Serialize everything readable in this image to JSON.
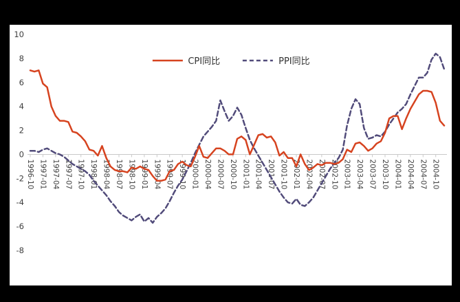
{
  "window": {
    "background": "#000000",
    "panel_background": "#ffffff"
  },
  "chart_data": {
    "type": "line",
    "title": "",
    "xlabel": "",
    "ylabel": "",
    "grid": false,
    "legend_position": "top-center",
    "axis_color": "#c9c9c9",
    "tick_label_color": "#3f3f3f",
    "ylim": [
      -8,
      10
    ],
    "yticks": [
      10,
      8,
      6,
      4,
      2,
      0,
      -2,
      -4,
      -6,
      -8
    ],
    "x_label_every": 3,
    "x": [
      "1996-10",
      "1996-11",
      "1996-12",
      "1997-01",
      "1997-02",
      "1997-03",
      "1997-04",
      "1997-05",
      "1997-06",
      "1997-07",
      "1997-08",
      "1997-09",
      "1997-10",
      "1997-11",
      "1997-12",
      "1998-01",
      "1998-02",
      "1998-03",
      "1998-04",
      "1998-05",
      "1998-06",
      "1998-07",
      "1998-08",
      "1998-09",
      "1998-10",
      "1998-11",
      "1998-12",
      "1999-01",
      "1999-02",
      "1999-03",
      "1999-04",
      "1999-05",
      "1999-06",
      "1999-07",
      "1999-08",
      "1999-09",
      "1999-10",
      "1999-11",
      "1999-12",
      "2000-01",
      "2000-02",
      "2000-03",
      "2000-04",
      "2000-05",
      "2000-06",
      "2000-07",
      "2000-08",
      "2000-09",
      "2000-10",
      "2000-11",
      "2000-12",
      "2001-01",
      "2001-02",
      "2001-03",
      "2001-04",
      "2001-05",
      "2001-06",
      "2001-07",
      "2001-08",
      "2001-09",
      "2001-10",
      "2001-11",
      "2001-12",
      "2002-01",
      "2002-02",
      "2002-03",
      "2002-04",
      "2002-05",
      "2002-06",
      "2002-07",
      "2002-08",
      "2002-09",
      "2002-10",
      "2002-11",
      "2002-12",
      "2003-01",
      "2003-02",
      "2003-03",
      "2003-04",
      "2003-05",
      "2003-06",
      "2003-07",
      "2003-08",
      "2003-09",
      "2003-10",
      "2003-11",
      "2003-12",
      "2004-01",
      "2004-02",
      "2004-03",
      "2004-04",
      "2004-05",
      "2004-06",
      "2004-07",
      "2004-08",
      "2004-09",
      "2004-10",
      "2004-11",
      "2004-12"
    ],
    "series": [
      {
        "name": "CPI同比",
        "color": "#d6431f",
        "style": "solid",
        "values": [
          7.0,
          6.9,
          7.0,
          5.9,
          5.6,
          4.0,
          3.2,
          2.8,
          2.8,
          2.7,
          1.9,
          1.8,
          1.5,
          1.1,
          0.4,
          0.3,
          -0.1,
          0.7,
          -0.3,
          -1.0,
          -1.3,
          -1.4,
          -1.4,
          -1.5,
          -1.1,
          -1.2,
          -1.0,
          -1.2,
          -1.3,
          -1.8,
          -2.2,
          -2.2,
          -2.1,
          -1.4,
          -1.3,
          -0.8,
          -0.6,
          -0.9,
          -1.0,
          -0.2,
          0.7,
          -0.2,
          -0.3,
          0.1,
          0.5,
          0.5,
          0.3,
          0.0,
          0.0,
          1.3,
          1.5,
          1.2,
          0.0,
          0.8,
          1.6,
          1.7,
          1.4,
          1.5,
          1.0,
          -0.1,
          0.2,
          -0.3,
          -0.3,
          -1.0,
          0.0,
          -0.8,
          -1.3,
          -1.1,
          -0.8,
          -0.9,
          -0.7,
          -0.7,
          -0.8,
          -0.7,
          -0.4,
          0.4,
          0.2,
          0.9,
          1.0,
          0.7,
          0.3,
          0.5,
          0.9,
          1.1,
          1.8,
          3.0,
          3.2,
          3.2,
          2.1,
          3.0,
          3.8,
          4.4,
          5.0,
          5.3,
          5.3,
          5.2,
          4.3,
          2.8,
          2.4
        ]
      },
      {
        "name": "PPI同比",
        "color": "#514b7a",
        "style": "dashed",
        "values": [
          0.3,
          0.3,
          0.2,
          0.4,
          0.5,
          0.3,
          0.1,
          0.0,
          -0.2,
          -0.5,
          -0.8,
          -1.0,
          -1.2,
          -1.4,
          -1.7,
          -2.2,
          -2.6,
          -3.0,
          -3.4,
          -3.9,
          -4.3,
          -4.8,
          -5.1,
          -5.3,
          -5.5,
          -5.2,
          -5.0,
          -5.6,
          -5.3,
          -5.7,
          -5.2,
          -4.9,
          -4.5,
          -3.9,
          -3.2,
          -2.6,
          -2.1,
          -1.4,
          -0.7,
          0.1,
          0.8,
          1.5,
          1.9,
          2.3,
          2.8,
          4.5,
          3.6,
          2.8,
          3.2,
          3.9,
          3.3,
          2.2,
          1.2,
          0.5,
          -0.1,
          -0.7,
          -1.3,
          -1.9,
          -2.5,
          -3.1,
          -3.6,
          -4.0,
          -4.1,
          -3.7,
          -4.2,
          -4.3,
          -4.0,
          -3.6,
          -3.0,
          -2.4,
          -1.8,
          -1.2,
          -0.7,
          -0.3,
          0.4,
          2.4,
          3.8,
          4.6,
          4.2,
          2.2,
          1.3,
          1.4,
          1.6,
          1.5,
          1.9,
          2.5,
          3.0,
          3.5,
          3.8,
          4.2,
          5.0,
          5.7,
          6.4,
          6.4,
          6.8,
          7.9,
          8.4,
          8.1,
          7.1
        ]
      }
    ]
  }
}
